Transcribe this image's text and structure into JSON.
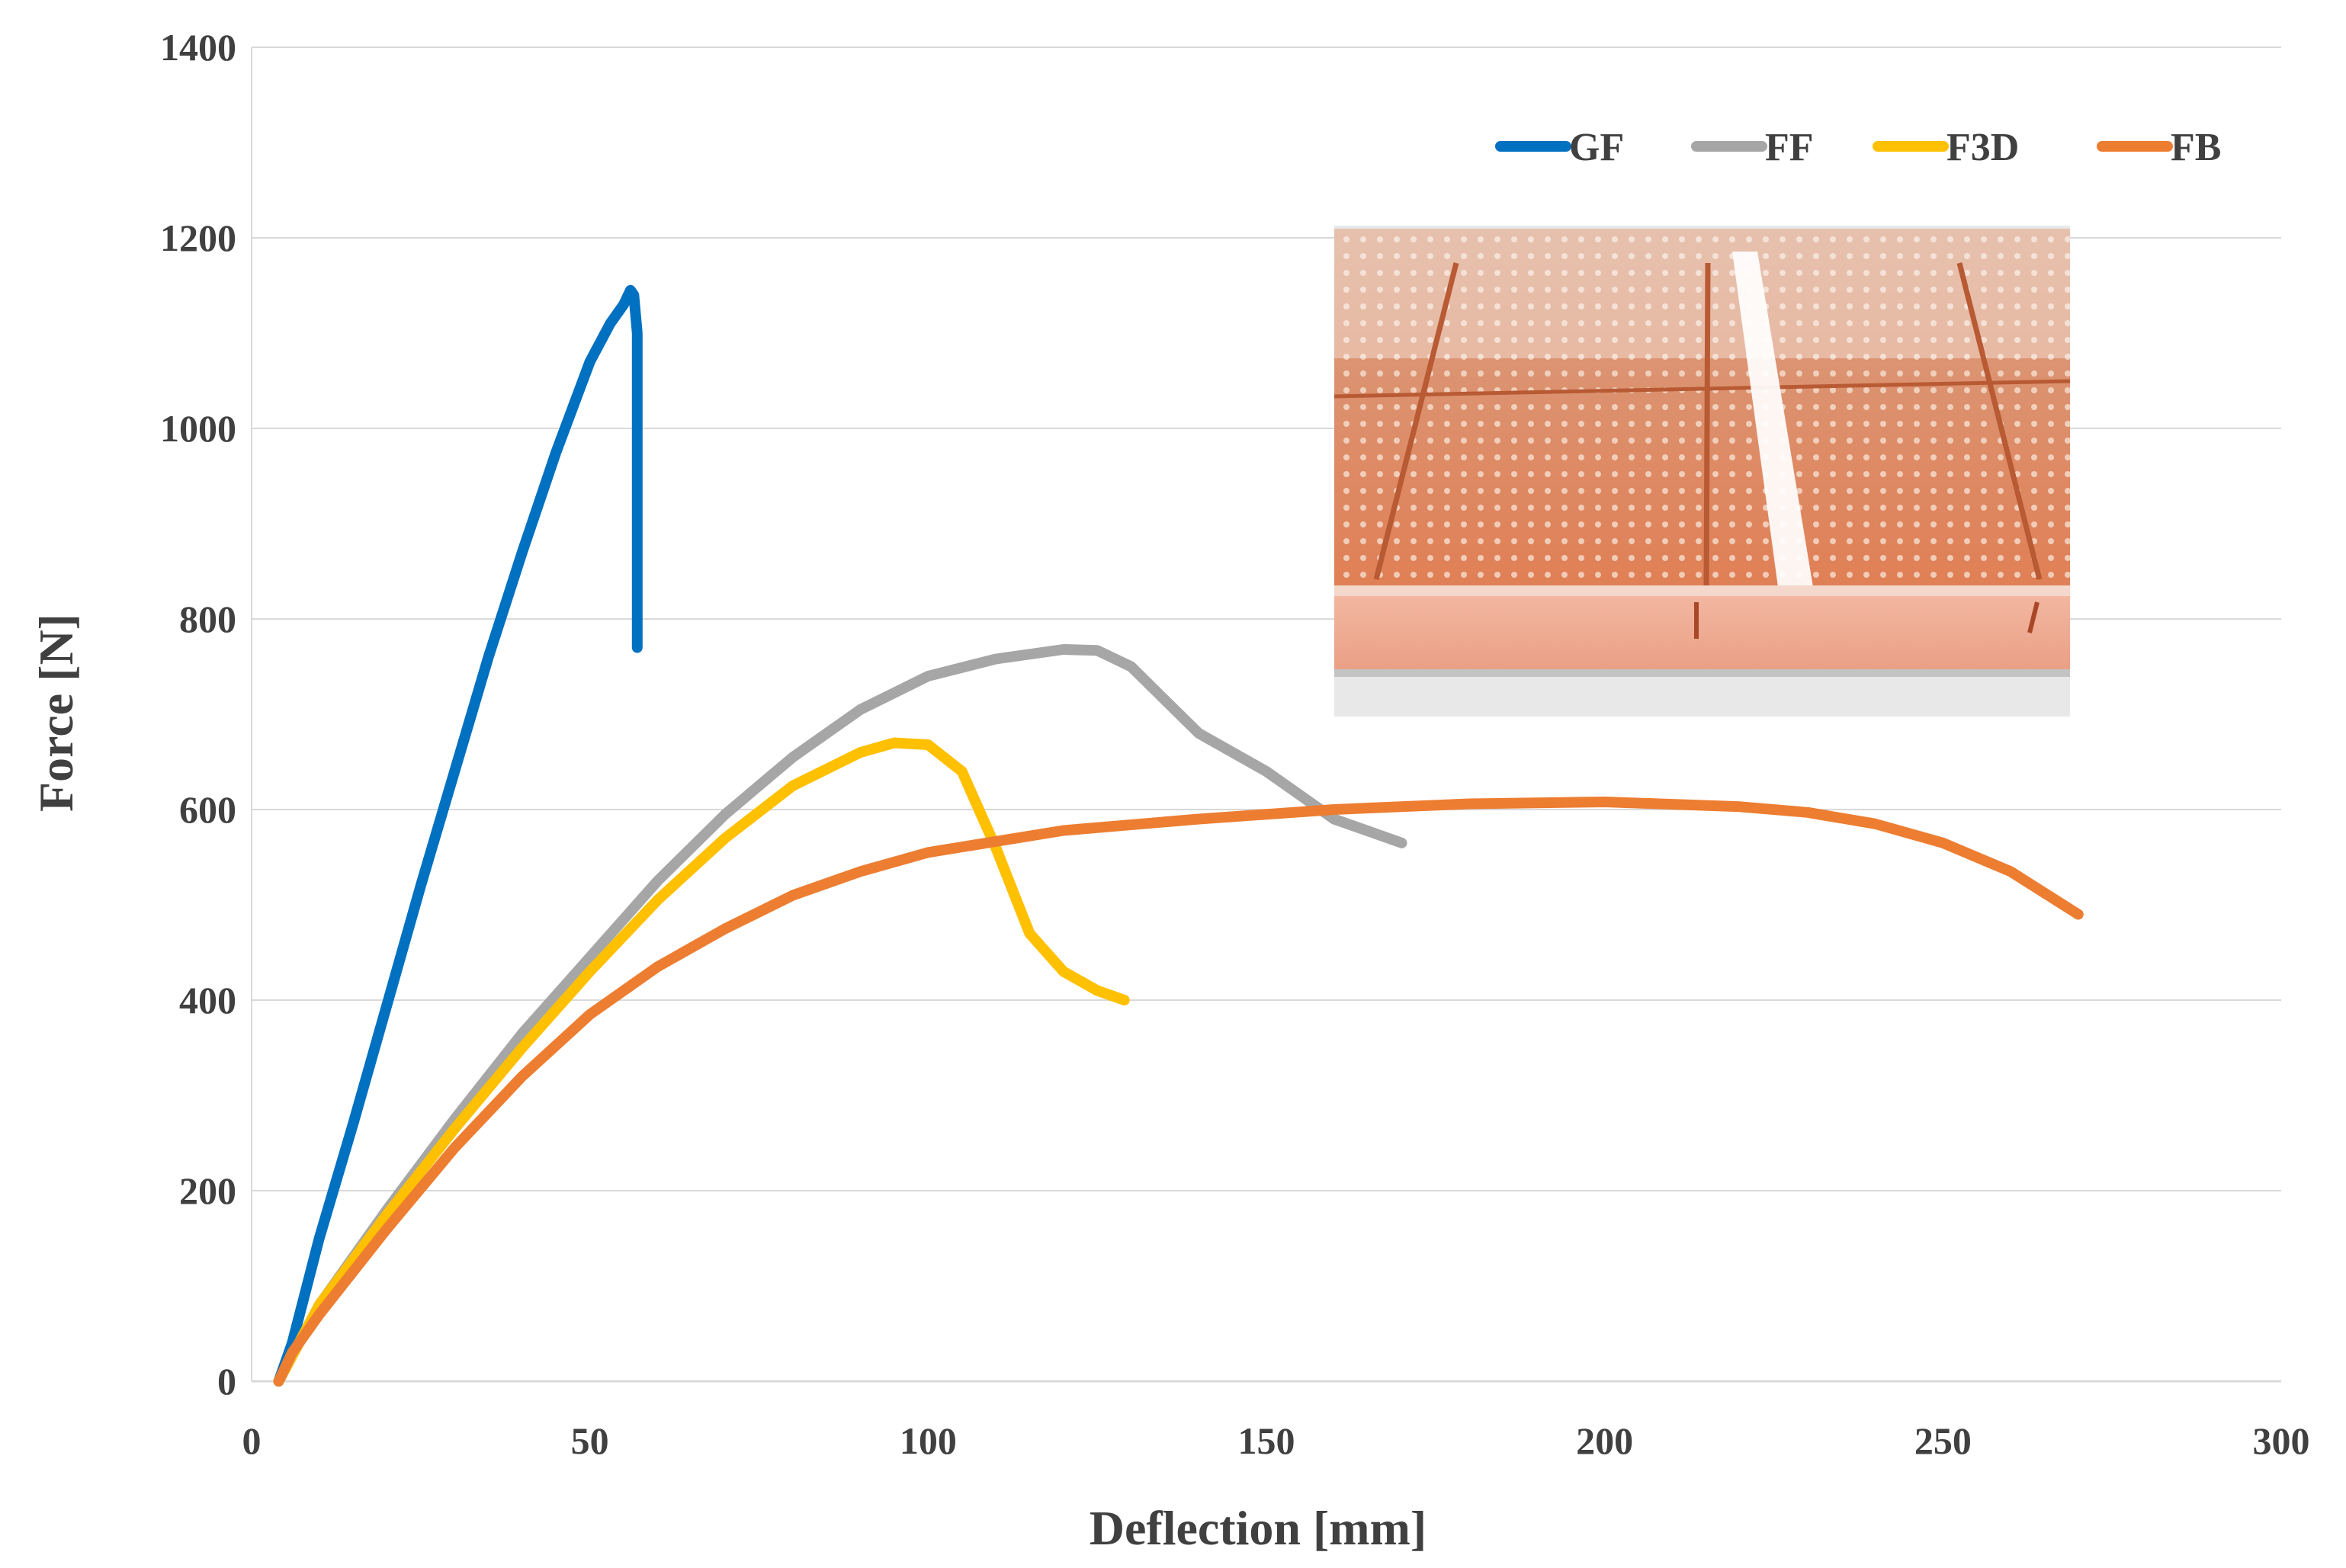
{
  "chart_data": {
    "type": "line",
    "title": "",
    "xlabel": "Deflection [mm]",
    "ylabel": "Force [N]",
    "xlim": [
      0,
      300
    ],
    "ylim": [
      0,
      1400
    ],
    "xticks": [
      0,
      50,
      100,
      150,
      200,
      250,
      300
    ],
    "yticks": [
      0,
      200,
      400,
      600,
      800,
      1000,
      1200,
      1400
    ],
    "grid": "horizontal",
    "legend_position": "top-right",
    "inset_image": "photo of orange foam-core sandwich panel cross-section with white fibre strip",
    "series": [
      {
        "name": "GF",
        "color": "#0070c0",
        "x": [
          4,
          6,
          10,
          15,
          20,
          25,
          30,
          35,
          40,
          45,
          50,
          53,
          55,
          56,
          56.5,
          57,
          57,
          57
        ],
        "y": [
          0,
          40,
          150,
          270,
          395,
          520,
          640,
          760,
          870,
          975,
          1070,
          1110,
          1130,
          1145,
          1140,
          1100,
          900,
          770
        ]
      },
      {
        "name": "FF",
        "color": "#a6a6a6",
        "x": [
          4,
          10,
          20,
          30,
          40,
          50,
          60,
          70,
          80,
          90,
          100,
          110,
          120,
          125,
          130,
          135,
          140,
          150,
          160,
          170
        ],
        "y": [
          0,
          80,
          180,
          275,
          365,
          445,
          525,
          595,
          655,
          705,
          740,
          758,
          768,
          767,
          750,
          715,
          680,
          640,
          590,
          565
        ]
      },
      {
        "name": "F3D",
        "color": "#ffc000",
        "x": [
          4,
          10,
          20,
          30,
          40,
          50,
          60,
          70,
          80,
          90,
          95,
          100,
          105,
          110,
          115,
          120,
          125,
          129
        ],
        "y": [
          0,
          80,
          175,
          265,
          350,
          430,
          505,
          570,
          625,
          660,
          670,
          668,
          640,
          560,
          470,
          430,
          410,
          400
        ]
      },
      {
        "name": "FB",
        "color": "#ed7d31",
        "x": [
          4,
          6,
          10,
          20,
          30,
          40,
          50,
          60,
          70,
          80,
          90,
          100,
          120,
          140,
          160,
          180,
          200,
          220,
          230,
          240,
          250,
          260,
          270
        ],
        "y": [
          0,
          30,
          70,
          160,
          245,
          320,
          385,
          435,
          475,
          510,
          535,
          555,
          578,
          590,
          600,
          606,
          608,
          603,
          597,
          585,
          565,
          535,
          490
        ]
      }
    ]
  }
}
